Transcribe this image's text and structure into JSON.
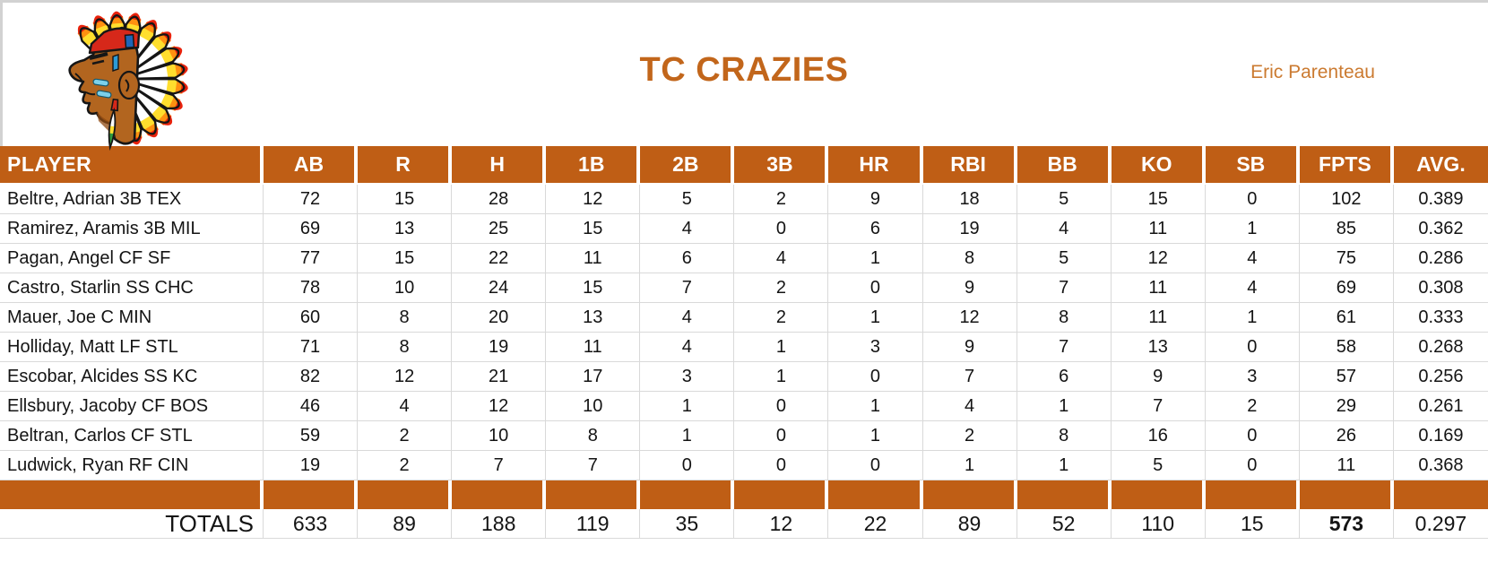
{
  "banner": {
    "title": "TC CRAZIES",
    "owner": "Eric Parenteau"
  },
  "colors": {
    "accent": "#BF5E15",
    "title_text": "#C2661B",
    "owner_text": "#CB7A30",
    "grid_line": "#D9D9D9",
    "edge_strip": "#D2D2D2"
  },
  "table": {
    "columns": [
      "PLAYER",
      "AB",
      "R",
      "H",
      "1B",
      "2B",
      "3B",
      "HR",
      "RBI",
      "BB",
      "KO",
      "SB",
      "FPTS",
      "AVG."
    ],
    "rows": [
      {
        "player": "Beltre, Adrian 3B TEX",
        "stats": [
          "72",
          "15",
          "28",
          "12",
          "5",
          "2",
          "9",
          "18",
          "5",
          "15",
          "0",
          "102",
          "0.389"
        ]
      },
      {
        "player": "Ramirez, Aramis 3B MIL",
        "stats": [
          "69",
          "13",
          "25",
          "15",
          "4",
          "0",
          "6",
          "19",
          "4",
          "11",
          "1",
          "85",
          "0.362"
        ]
      },
      {
        "player": "Pagan, Angel CF SF",
        "stats": [
          "77",
          "15",
          "22",
          "11",
          "6",
          "4",
          "1",
          "8",
          "5",
          "12",
          "4",
          "75",
          "0.286"
        ]
      },
      {
        "player": "Castro, Starlin SS CHC",
        "stats": [
          "78",
          "10",
          "24",
          "15",
          "7",
          "2",
          "0",
          "9",
          "7",
          "11",
          "4",
          "69",
          "0.308"
        ]
      },
      {
        "player": "Mauer, Joe C MIN",
        "stats": [
          "60",
          "8",
          "20",
          "13",
          "4",
          "2",
          "1",
          "12",
          "8",
          "11",
          "1",
          "61",
          "0.333"
        ]
      },
      {
        "player": "Holliday, Matt LF STL",
        "stats": [
          "71",
          "8",
          "19",
          "11",
          "4",
          "1",
          "3",
          "9",
          "7",
          "13",
          "0",
          "58",
          "0.268"
        ]
      },
      {
        "player": "Escobar, Alcides SS KC",
        "stats": [
          "82",
          "12",
          "21",
          "17",
          "3",
          "1",
          "0",
          "7",
          "6",
          "9",
          "3",
          "57",
          "0.256"
        ]
      },
      {
        "player": "Ellsbury, Jacoby CF BOS",
        "stats": [
          "46",
          "4",
          "12",
          "10",
          "1",
          "0",
          "1",
          "4",
          "1",
          "7",
          "2",
          "29",
          "0.261"
        ]
      },
      {
        "player": "Beltran, Carlos CF STL",
        "stats": [
          "59",
          "2",
          "10",
          "8",
          "1",
          "0",
          "1",
          "2",
          "8",
          "16",
          "0",
          "26",
          "0.169"
        ]
      },
      {
        "player": "Ludwick, Ryan RF CIN",
        "stats": [
          "19",
          "2",
          "7",
          "7",
          "0",
          "0",
          "0",
          "1",
          "1",
          "5",
          "0",
          "11",
          "0.368"
        ]
      }
    ],
    "totals_label": "TOTALS",
    "totals": [
      "633",
      "89",
      "188",
      "119",
      "35",
      "12",
      "22",
      "89",
      "52",
      "110",
      "15",
      "573",
      "0.297"
    ],
    "totals_bold_column": "FPTS"
  }
}
